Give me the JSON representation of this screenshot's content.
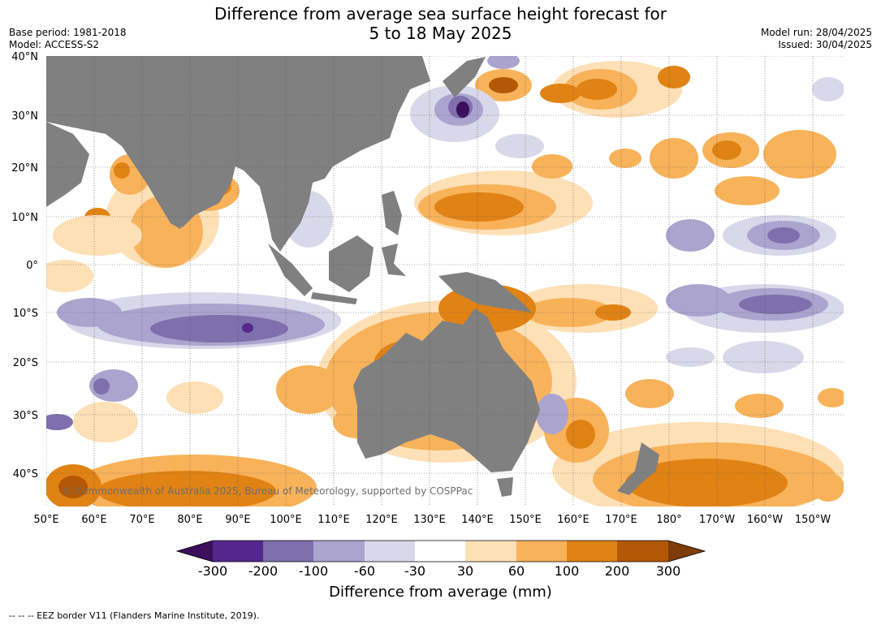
{
  "header": {
    "title_line1": "Difference from average sea surface height forecast for",
    "title_line2": "5 to 18 May 2025",
    "base_period": "Base period: 1981-2018",
    "model": "Model: ACCESS-S2",
    "model_run": "Model run: 28/04/2025",
    "issued": "Issued: 30/04/2025"
  },
  "map": {
    "lat_labels": [
      "40°N",
      "30°N",
      "20°N",
      "10°N",
      "0°",
      "10°S",
      "20°S",
      "30°S",
      "40°S"
    ],
    "lon_labels": [
      "50°E",
      "60°E",
      "70°E",
      "80°E",
      "90°E",
      "100°E",
      "110°E",
      "120°E",
      "130°E",
      "140°E",
      "150°E",
      "160°E",
      "170°E",
      "180°",
      "170°W",
      "160°W",
      "150°W"
    ],
    "copyright": "© Commonwealth of Australia 2025, Bureau of Meteorology, supported by COSPPac",
    "land_color": "#808080"
  },
  "colorbar": {
    "tick_labels": [
      "-300",
      "-200",
      "-100",
      "-60",
      "-30",
      "30",
      "60",
      "100",
      "200",
      "300"
    ],
    "colors": [
      "#3b0f5b",
      "#54278f",
      "#7f6fac",
      "#aba4cf",
      "#d8d8ea",
      "#ffffff",
      "#fee0b6",
      "#f8b25a",
      "#e08214",
      "#b35806",
      "#7f3b08"
    ],
    "label": "Difference from average (mm)"
  },
  "footnote": "--  --  -- EEZ border V11 (Flanders Marine Institute, 2019)."
}
